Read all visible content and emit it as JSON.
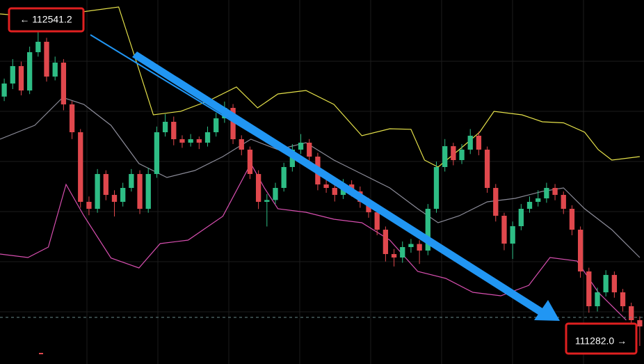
{
  "chart_data": {
    "type": "candlestick",
    "up_color": "#2ebd85",
    "down_color": "#e0484d",
    "xlim": [
      -0.5,
      75.5
    ],
    "ylim": [
      111209.6,
      112666.6
    ],
    "grid": true,
    "open": [
      112280.0,
      112332.3,
      112402.0,
      112304.4,
      112457.7,
      112499.4,
      112360.1,
      112415.9,
      112248.7,
      112137.3,
      111858.7,
      111830.8,
      111970.1,
      111886.5,
      111858.7,
      111914.4,
      111970.1,
      111830.8,
      111970.1,
      112137.3,
      112179.1,
      112109.4,
      112095.5,
      112109.4,
      112095.5,
      112137.3,
      112193.0,
      112234.8,
      112109.4,
      112067.6,
      111970.1,
      111858.7,
      111866.0,
      111914.4,
      111998.0,
      112067.6,
      112095.5,
      112039.7,
      111928.3,
      111914.4,
      111886.5,
      111928.3,
      111900.5,
      111858.7,
      111816.9,
      111747.2,
      111649.7,
      111635.8,
      111677.6,
      111690.0,
      111663.6,
      111830.8,
      111998.0,
      112081.5,
      112025.8,
      112067.6,
      112123.3,
      112067.6,
      111914.4,
      111803.0,
      111691.5,
      111761.2,
      111830.8,
      111858.7,
      111872.6,
      111914.4,
      111886.5,
      111830.8,
      111747.2,
      111580.1,
      111440.8,
      111496.5,
      111566.1,
      111496.5,
      111440.8,
      111385.1
    ],
    "high": [
      112352.0,
      112430.0,
      112420.0,
      112480.0,
      112541.2,
      112515.0,
      112440.0,
      112430.0,
      112262.0,
      112150.0,
      111880.0,
      111990.0,
      111985.0,
      111905.0,
      111935.0,
      111990.0,
      111985.0,
      111995.0,
      112160.0,
      112210.0,
      112200.0,
      112125.0,
      112130.0,
      112120.0,
      112160.0,
      112215.0,
      112260.0,
      112250.0,
      112125.0,
      112080.0,
      111985.0,
      111890.0,
      111935.0,
      112015.0,
      112090.0,
      112130.0,
      112110.0,
      112055.0,
      111950.0,
      111930.0,
      111950.0,
      111945.0,
      111920.0,
      111875.0,
      111830.0,
      111760.0,
      111670.0,
      111700.0,
      111710.0,
      111705.0,
      111850.0,
      112020.0,
      112110.0,
      112095.0,
      112090.0,
      112150.0,
      112140.0,
      112080.0,
      111930.0,
      111815.0,
      111780.0,
      111850.0,
      111880.0,
      111905.0,
      111935.0,
      111930.0,
      111900.0,
      111845.0,
      111760.0,
      111595.0,
      111515.0,
      111585.0,
      111580.0,
      111510.0,
      111455.0,
      111400.0
    ],
    "low": [
      112262.0,
      112310.0,
      112285.0,
      112290.0,
      112440.0,
      112340.0,
      112345.0,
      112225.0,
      112110.0,
      111835.0,
      111805.0,
      111815.0,
      111865.0,
      111800.0,
      111840.0,
      111900.0,
      111810.0,
      111815.0,
      111955.0,
      112120.0,
      112085.0,
      112075.0,
      112080.0,
      112070.0,
      112080.0,
      112120.0,
      112175.0,
      112090.0,
      112045.0,
      111950.0,
      111830.0,
      111760.0,
      111850.0,
      111900.0,
      111980.0,
      112050.0,
      112020.0,
      111905.0,
      111895.0,
      111860.0,
      111870.0,
      111880.0,
      111835.0,
      111795.0,
      111725.0,
      111620.0,
      111600.0,
      111615.0,
      111655.0,
      111610.0,
      111645.0,
      111815.0,
      111980.0,
      112005.0,
      112010.0,
      112050.0,
      112045.0,
      111895.0,
      111780.0,
      111665.0,
      111630.0,
      111745.0,
      111815.0,
      111840.0,
      111855.0,
      111865.0,
      111810.0,
      111725.0,
      111555.0,
      111415.0,
      111420.0,
      111480.0,
      111475.0,
      111420.0,
      111360.0,
      111282.0
    ],
    "close": [
      112332.3,
      112402.0,
      112304.4,
      112457.7,
      112499.4,
      112360.1,
      112415.9,
      112248.7,
      112137.3,
      111858.7,
      111830.8,
      111970.1,
      111886.5,
      111858.7,
      111914.4,
      111970.1,
      111830.8,
      111970.1,
      112137.3,
      112179.1,
      112109.4,
      112095.5,
      112109.4,
      112095.5,
      112137.3,
      112193.0,
      112234.8,
      112109.4,
      112067.6,
      111970.1,
      111858.7,
      111866.0,
      111914.4,
      111998.0,
      112067.6,
      112095.5,
      112039.7,
      111928.3,
      111914.4,
      111886.5,
      111928.3,
      111900.5,
      111858.7,
      111816.9,
      111747.2,
      111649.7,
      111635.8,
      111677.6,
      111690.0,
      111663.6,
      111830.8,
      111998.0,
      112081.5,
      112025.8,
      112067.6,
      112123.3,
      112067.6,
      111914.4,
      111803.0,
      111691.5,
      111761.2,
      111830.8,
      111858.7,
      111872.6,
      111914.4,
      111886.5,
      111830.8,
      111747.2,
      111580.1,
      111440.8,
      111496.5,
      111566.1,
      111496.5,
      111440.8,
      111385.1,
      111360.0
    ],
    "bands": [
      {
        "color": "#e6e24a",
        "x": [
          -0.5,
          4.4,
          13.5,
          15.9,
          17.6,
          20.8,
          24.1,
          27.4,
          29.9,
          32.3,
          35.6,
          38.9,
          42.2,
          45.5,
          48,
          49.6,
          51.2,
          53.7,
          56.1,
          57.8,
          61.1,
          63.5,
          66,
          68.5,
          70.1,
          71.7,
          75
        ],
        "values": [
          112610.9,
          112596.9,
          112638.7,
          112388.0,
          112206.9,
          112220.8,
          112262.6,
          112318.4,
          112234.8,
          112290.5,
          112304.4,
          112248.7,
          112123.3,
          112151.2,
          112149.0,
          112025.8,
          111998.0,
          112067.6,
          112137.3,
          112220.8,
          112206.9,
          112179.1,
          112175.0,
          112137.3,
          112067.6,
          112025.8,
          112039.7
        ]
      },
      {
        "color": "#8c8c99",
        "x": [
          -0.5,
          3.6,
          6.9,
          9.4,
          12.6,
          15.9,
          19.2,
          22.5,
          25.8,
          29.1,
          32.3,
          35.6,
          38.9,
          42.2,
          45.5,
          48.8,
          51.2,
          53.7,
          57,
          60.3,
          63.5,
          66,
          68.5,
          71.7,
          75
        ],
        "values": [
          112109.4,
          112165.1,
          112276.6,
          112248.7,
          112165.0,
          112011.9,
          111956.2,
          111984.0,
          112039.7,
          112109.4,
          112067.6,
          112095.5,
          112025.8,
          111970.1,
          111914.4,
          111830.8,
          111775.1,
          111803.0,
          111858.7,
          111872.6,
          111900.5,
          111914.4,
          111830.8,
          111747.2,
          111635.8
        ]
      },
      {
        "color": "#d84fb0",
        "x": [
          -0.5,
          2.8,
          5.2,
          7.3,
          9.4,
          12.6,
          15.9,
          18.4,
          21.7,
          25.8,
          29.1,
          30.7,
          32.3,
          35.6,
          38.9,
          42.2,
          45.5,
          48.8,
          52.1,
          55.3,
          58.6,
          61.9,
          64.4,
          67.6,
          70.1,
          73.4
        ],
        "values": [
          111649.7,
          111635.8,
          111677.6,
          111928.3,
          111803.0,
          111634.0,
          111594.0,
          111691.5,
          111705.4,
          111801.0,
          112011.9,
          111914.4,
          111830.8,
          111816.9,
          111789.0,
          111775.1,
          111705.4,
          111580.1,
          111552.2,
          111496.5,
          111482.6,
          111524.4,
          111635.8,
          111621.9,
          111496.5,
          111385.1
        ]
      }
    ],
    "annotations": [
      "← 112541.2",
      "111282.0 →"
    ]
  }
}
